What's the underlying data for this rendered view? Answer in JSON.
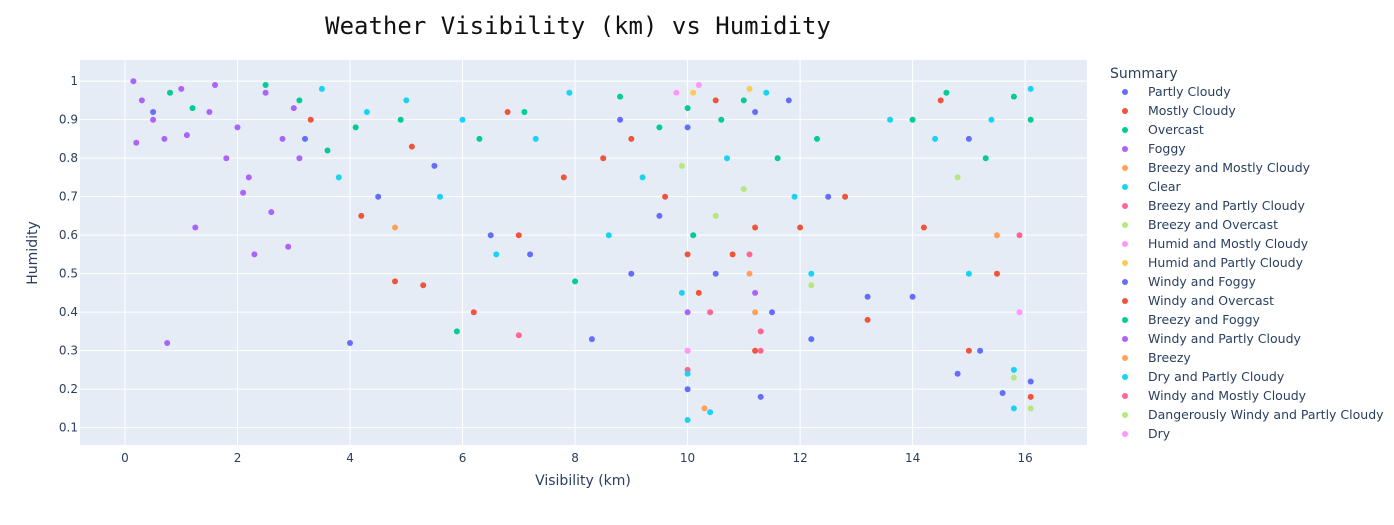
{
  "chart_data": {
    "type": "scatter",
    "title": "Weather Visibility (km) vs Humidity",
    "xlabel": "Visibility (km)",
    "ylabel": "Humidity",
    "xlim": [
      -0.8,
      17.1
    ],
    "ylim": [
      0.055,
      1.055
    ],
    "xticks": [
      0,
      2,
      4,
      6,
      8,
      10,
      12,
      14,
      16
    ],
    "yticks": [
      0.1,
      0.2,
      0.3,
      0.4,
      0.5,
      0.6,
      0.7,
      0.8,
      0.9,
      1
    ],
    "grid": true,
    "plot_background": "#e5ecf6",
    "legend_title": "Summary",
    "legend_placement": "right",
    "series": [
      {
        "name": "Partly Cloudy",
        "color": "#636efa",
        "points": [
          [
            0.5,
            0.92
          ],
          [
            3.2,
            0.85
          ],
          [
            4.0,
            0.32
          ],
          [
            4.5,
            0.7
          ],
          [
            5.5,
            0.78
          ],
          [
            6.5,
            0.6
          ],
          [
            7.2,
            0.55
          ],
          [
            8.3,
            0.33
          ],
          [
            9.0,
            0.5
          ],
          [
            9.5,
            0.65
          ],
          [
            10.0,
            0.2
          ],
          [
            10.5,
            0.5
          ],
          [
            11.3,
            0.18
          ],
          [
            11.5,
            0.4
          ],
          [
            12.2,
            0.33
          ],
          [
            12.5,
            0.7
          ],
          [
            13.2,
            0.44
          ],
          [
            14.0,
            0.44
          ],
          [
            14.8,
            0.24
          ],
          [
            15.2,
            0.3
          ],
          [
            15.6,
            0.19
          ],
          [
            16.1,
            0.22
          ],
          [
            15.0,
            0.85
          ],
          [
            11.8,
            0.95
          ],
          [
            8.8,
            0.9
          ]
        ]
      },
      {
        "name": "Mostly Cloudy",
        "color": "#ef553b",
        "points": [
          [
            3.3,
            0.9
          ],
          [
            4.2,
            0.65
          ],
          [
            4.8,
            0.48
          ],
          [
            5.3,
            0.47
          ],
          [
            6.2,
            0.4
          ],
          [
            7.0,
            0.6
          ],
          [
            7.8,
            0.75
          ],
          [
            8.5,
            0.8
          ],
          [
            9.0,
            0.85
          ],
          [
            9.6,
            0.7
          ],
          [
            10.2,
            0.45
          ],
          [
            10.8,
            0.55
          ],
          [
            11.2,
            0.3
          ],
          [
            12.0,
            0.62
          ],
          [
            12.8,
            0.7
          ],
          [
            13.2,
            0.38
          ],
          [
            14.2,
            0.62
          ],
          [
            15.0,
            0.3
          ],
          [
            15.5,
            0.5
          ],
          [
            16.1,
            0.18
          ],
          [
            14.5,
            0.95
          ],
          [
            10.5,
            0.95
          ],
          [
            6.8,
            0.92
          ],
          [
            5.1,
            0.83
          ]
        ]
      },
      {
        "name": "Overcast",
        "color": "#00cc96",
        "points": [
          [
            0.8,
            0.97
          ],
          [
            1.2,
            0.93
          ],
          [
            2.5,
            0.99
          ],
          [
            3.1,
            0.95
          ],
          [
            3.6,
            0.82
          ],
          [
            4.1,
            0.88
          ],
          [
            4.9,
            0.9
          ],
          [
            5.9,
            0.35
          ],
          [
            6.3,
            0.85
          ],
          [
            7.1,
            0.92
          ],
          [
            8.0,
            0.48
          ],
          [
            8.8,
            0.96
          ],
          [
            9.5,
            0.88
          ],
          [
            10.1,
            0.6
          ],
          [
            10.6,
            0.9
          ],
          [
            11.0,
            0.95
          ],
          [
            11.6,
            0.8
          ],
          [
            12.3,
            0.85
          ],
          [
            14.0,
            0.9
          ],
          [
            14.6,
            0.97
          ],
          [
            15.3,
            0.8
          ],
          [
            15.8,
            0.96
          ],
          [
            16.1,
            0.9
          ]
        ]
      },
      {
        "name": "Foggy",
        "color": "#ab63fa",
        "points": [
          [
            0.15,
            1.0
          ],
          [
            0.3,
            0.95
          ],
          [
            0.5,
            0.9
          ],
          [
            0.7,
            0.85
          ],
          [
            0.75,
            0.32
          ],
          [
            1.0,
            0.98
          ],
          [
            1.25,
            0.62
          ],
          [
            1.5,
            0.92
          ],
          [
            1.8,
            0.8
          ],
          [
            2.0,
            0.88
          ],
          [
            2.2,
            0.75
          ],
          [
            2.3,
            0.55
          ],
          [
            2.5,
            0.97
          ],
          [
            2.6,
            0.66
          ],
          [
            2.8,
            0.85
          ],
          [
            2.9,
            0.57
          ],
          [
            3.0,
            0.93
          ],
          [
            3.1,
            0.8
          ],
          [
            0.2,
            0.84
          ],
          [
            1.1,
            0.86
          ],
          [
            1.6,
            0.99
          ],
          [
            2.1,
            0.71
          ]
        ]
      },
      {
        "name": "Breezy and Mostly Cloudy",
        "color": "#ffa15a",
        "points": [
          [
            4.8,
            0.62
          ],
          [
            10.0,
            0.3
          ],
          [
            11.2,
            0.4
          ],
          [
            15.5,
            0.6
          ]
        ]
      },
      {
        "name": "Clear",
        "color": "#19d3f3",
        "points": [
          [
            3.5,
            0.98
          ],
          [
            3.8,
            0.75
          ],
          [
            4.3,
            0.92
          ],
          [
            5.0,
            0.95
          ],
          [
            5.6,
            0.7
          ],
          [
            6.0,
            0.9
          ],
          [
            6.6,
            0.55
          ],
          [
            7.3,
            0.85
          ],
          [
            7.9,
            0.97
          ],
          [
            8.6,
            0.6
          ],
          [
            9.2,
            0.75
          ],
          [
            10.0,
            0.12
          ],
          [
            10.4,
            0.14
          ],
          [
            10.7,
            0.8
          ],
          [
            11.4,
            0.97
          ],
          [
            11.9,
            0.7
          ],
          [
            12.2,
            0.5
          ],
          [
            13.6,
            0.9
          ],
          [
            14.4,
            0.85
          ],
          [
            15.0,
            0.5
          ],
          [
            15.4,
            0.9
          ],
          [
            15.8,
            0.15
          ],
          [
            16.1,
            0.98
          ],
          [
            9.9,
            0.45
          ]
        ]
      },
      {
        "name": "Breezy and Partly Cloudy",
        "color": "#ff6692",
        "points": [
          [
            10.0,
            0.25
          ],
          [
            10.4,
            0.4
          ],
          [
            11.3,
            0.3
          ],
          [
            11.1,
            0.55
          ],
          [
            15.9,
            0.6
          ]
        ]
      },
      {
        "name": "Breezy and Overcast",
        "color": "#b6e880",
        "points": [
          [
            9.9,
            0.78
          ],
          [
            10.5,
            0.65
          ],
          [
            11.0,
            0.72
          ],
          [
            12.2,
            0.47
          ],
          [
            14.8,
            0.75
          ],
          [
            16.1,
            0.15
          ]
        ]
      },
      {
        "name": "Humid and Mostly Cloudy",
        "color": "#ff97ff",
        "points": [
          [
            9.8,
            0.97
          ],
          [
            10.2,
            0.99
          ]
        ]
      },
      {
        "name": "Humid and Partly Cloudy",
        "color": "#fecb52",
        "points": [
          [
            10.1,
            0.97
          ],
          [
            11.1,
            0.98
          ]
        ]
      },
      {
        "name": "Windy and Foggy",
        "color": "#636efa",
        "points": [
          [
            10.0,
            0.88
          ],
          [
            11.2,
            0.92
          ]
        ]
      },
      {
        "name": "Windy and Overcast",
        "color": "#ef553b",
        "points": [
          [
            10.0,
            0.55
          ],
          [
            11.2,
            0.62
          ]
        ]
      },
      {
        "name": "Breezy and Foggy",
        "color": "#00cc96",
        "points": [
          [
            10.0,
            0.93
          ]
        ]
      },
      {
        "name": "Windy and Partly Cloudy",
        "color": "#ab63fa",
        "points": [
          [
            10.0,
            0.4
          ],
          [
            11.2,
            0.45
          ]
        ]
      },
      {
        "name": "Breezy",
        "color": "#ffa15a",
        "points": [
          [
            10.3,
            0.15
          ],
          [
            11.1,
            0.5
          ]
        ]
      },
      {
        "name": "Dry and Partly Cloudy",
        "color": "#19d3f3",
        "points": [
          [
            10.0,
            0.24
          ],
          [
            15.8,
            0.25
          ]
        ]
      },
      {
        "name": "Windy and Mostly Cloudy",
        "color": "#ff6692",
        "points": [
          [
            7.0,
            0.34
          ],
          [
            11.3,
            0.35
          ]
        ]
      },
      {
        "name": "Dangerously Windy and Partly Cloudy",
        "color": "#b6e880",
        "points": [
          [
            15.8,
            0.23
          ]
        ]
      },
      {
        "name": "Dry",
        "color": "#ff97ff",
        "points": [
          [
            10.0,
            0.3
          ],
          [
            15.9,
            0.4
          ]
        ]
      }
    ]
  }
}
